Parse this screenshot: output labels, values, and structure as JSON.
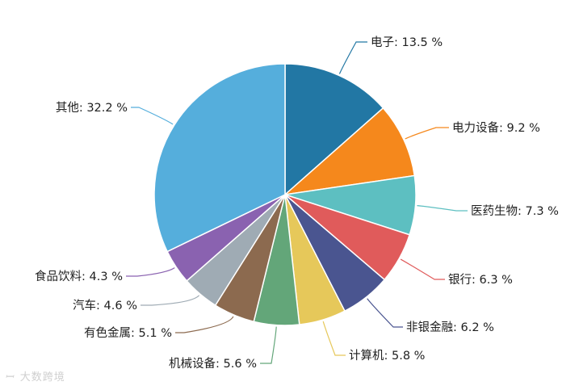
{
  "chart_data": {
    "type": "pie",
    "categories": [
      "电子",
      "电力设备",
      "医药生物",
      "银行",
      "非银金融",
      "计算机",
      "机械设备",
      "有色金属",
      "汽车",
      "食品饮料",
      "其他"
    ],
    "values": [
      13.5,
      9.2,
      7.3,
      6.3,
      6.2,
      5.8,
      5.6,
      5.1,
      4.6,
      4.3,
      32.2
    ],
    "labels": [
      "电子: 13.5 %",
      "电力设备: 9.2 %",
      "医药生物: 7.3 %",
      "银行: 6.3 %",
      "非银金融: 6.2 %",
      "计算机: 5.8 %",
      "机械设备: 5.6 %",
      "有色金属: 5.1 %",
      "汽车: 4.6 %",
      "食品饮料: 4.3 %",
      "其他: 32.2 %"
    ],
    "colors": [
      "#2277a4",
      "#f5881c",
      "#5dbfc1",
      "#e05b5b",
      "#4a5590",
      "#e6c85a",
      "#63a679",
      "#8c6a4f",
      "#9fabb4",
      "#8a62b0",
      "#55aedc"
    ],
    "start": "12 o'clock, clockwise"
  },
  "watermark": {
    "mark": "ꟷ",
    "text": "大数跨境"
  }
}
